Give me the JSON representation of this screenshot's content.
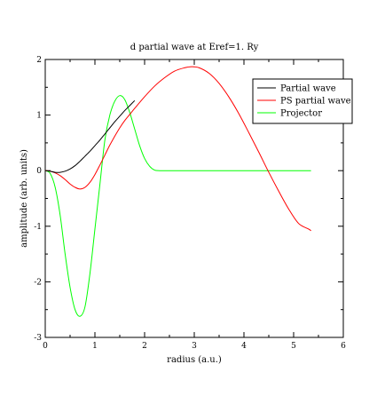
{
  "chart_data": {
    "type": "line",
    "title": "d partial wave at Eref=1. Ry",
    "xlabel": "radius (a.u.)",
    "ylabel": "amplitude (arb. units)",
    "xlim": [
      0,
      6
    ],
    "ylim": [
      -3,
      2
    ],
    "x_ticks": [
      "0",
      "1",
      "2",
      "3",
      "4",
      "5",
      "6"
    ],
    "y_ticks": [
      "-3",
      "-2",
      "-1",
      "0",
      "1",
      "2"
    ],
    "legend_position": "top-right",
    "grid": false,
    "series": [
      {
        "name": "Partial wave",
        "color": "#000000",
        "x": [
          0,
          0.1,
          0.2,
          0.3,
          0.4,
          0.5,
          0.6,
          0.7,
          0.8,
          0.9,
          1.0,
          1.1,
          1.2,
          1.3,
          1.4,
          1.5,
          1.6,
          1.7,
          1.8
        ],
        "y": [
          0,
          -0.01,
          -0.03,
          -0.03,
          -0.01,
          0.03,
          0.09,
          0.17,
          0.26,
          0.35,
          0.45,
          0.55,
          0.66,
          0.77,
          0.88,
          0.98,
          1.08,
          1.17,
          1.26
        ]
      },
      {
        "name": "PS partial wave",
        "color": "#ff0000",
        "x": [
          0,
          0.1,
          0.2,
          0.3,
          0.4,
          0.5,
          0.6,
          0.7,
          0.8,
          0.9,
          1.0,
          1.1,
          1.2,
          1.3,
          1.4,
          1.5,
          1.6,
          1.7,
          1.8,
          2.0,
          2.2,
          2.4,
          2.6,
          2.8,
          2.95,
          3.1,
          3.3,
          3.5,
          3.7,
          3.9,
          4.1,
          4.3,
          4.5,
          4.7,
          4.9,
          5.1,
          5.3,
          5.35
        ],
        "y": [
          0,
          -0.01,
          -0.04,
          -0.09,
          -0.16,
          -0.24,
          -0.3,
          -0.33,
          -0.3,
          -0.21,
          -0.07,
          0.1,
          0.28,
          0.46,
          0.62,
          0.77,
          0.9,
          1.01,
          1.12,
          1.33,
          1.52,
          1.67,
          1.79,
          1.85,
          1.87,
          1.85,
          1.75,
          1.57,
          1.32,
          1.02,
          0.68,
          0.33,
          -0.03,
          -0.37,
          -0.69,
          -0.95,
          -1.05,
          -1.08
        ]
      },
      {
        "name": "Projector",
        "color": "#00ff00",
        "x": [
          0,
          0.1,
          0.2,
          0.3,
          0.4,
          0.5,
          0.6,
          0.7,
          0.8,
          0.9,
          1.0,
          1.1,
          1.2,
          1.3,
          1.4,
          1.5,
          1.6,
          1.7,
          1.8,
          1.9,
          2.0,
          2.1,
          2.2,
          2.3,
          2.5,
          3.0,
          4.0,
          5.0,
          5.35
        ],
        "y": [
          0,
          -0.05,
          -0.3,
          -0.8,
          -1.5,
          -2.1,
          -2.5,
          -2.62,
          -2.45,
          -1.85,
          -1.05,
          -0.25,
          0.55,
          1.0,
          1.25,
          1.35,
          1.28,
          1.05,
          0.75,
          0.45,
          0.22,
          0.08,
          0.01,
          0,
          0,
          0,
          0,
          0,
          0
        ]
      }
    ]
  }
}
